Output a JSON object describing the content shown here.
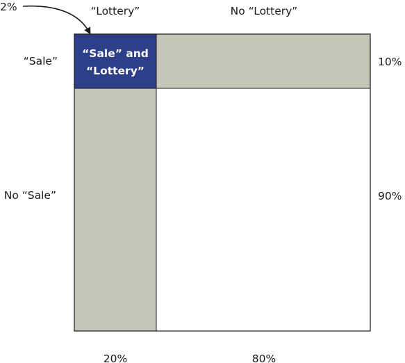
{
  "labels": {
    "callout": "2%",
    "col_lottery": "“Lottery”",
    "col_no_lottery": "No “Lottery”",
    "row_sale": "“Sale”",
    "row_no_sale": "No “Sale”",
    "right_top": "10%",
    "right_bottom": "90%",
    "bottom_left": "20%",
    "bottom_right": "80%",
    "cell_line1": "“Sale” and",
    "cell_line2": "“Lottery”"
  },
  "proportions": {
    "lottery": 0.2,
    "no_lottery": 0.8,
    "sale": 0.1,
    "no_sale": 0.9,
    "sale_and_lottery": 0.02
  },
  "colors": {
    "intersection": "#2e3f8a",
    "marginal": "#c5c5b8",
    "background": "#ffffff",
    "stroke": "#1a1a1a"
  }
}
